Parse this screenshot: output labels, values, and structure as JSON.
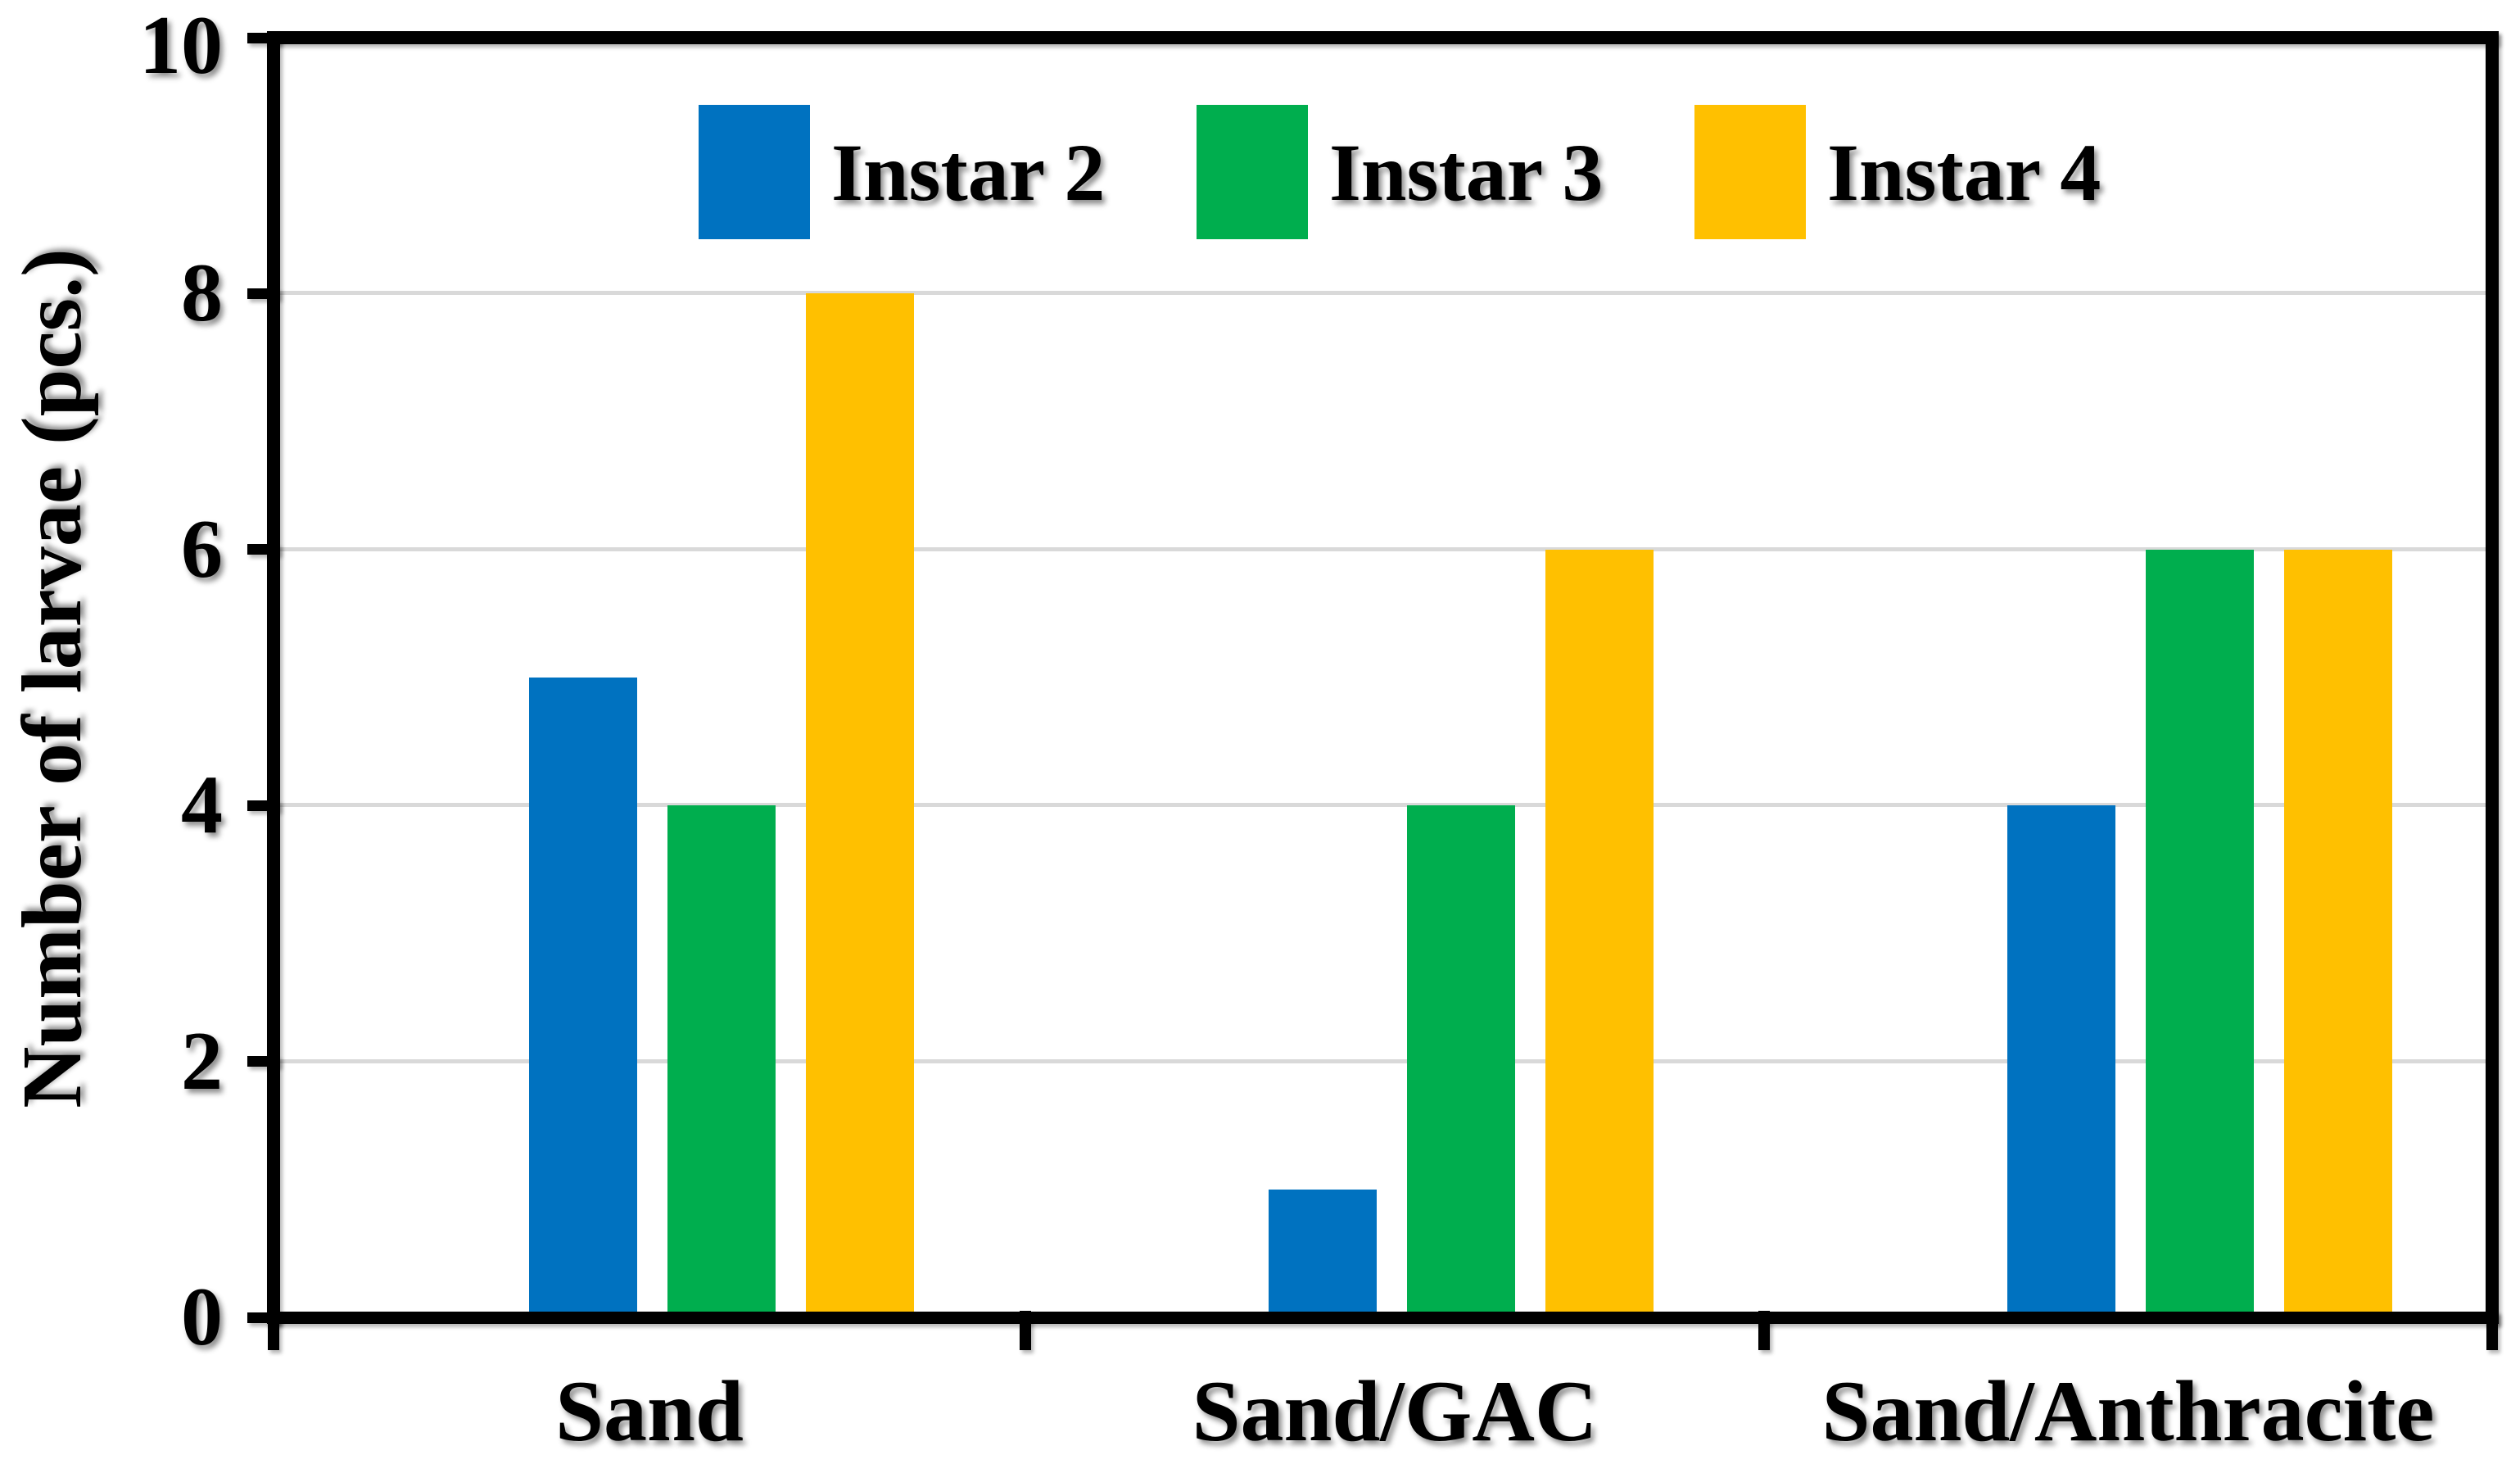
{
  "chart_data": {
    "type": "bar",
    "title": "",
    "ylabel": "Number of larvae (pcs.)",
    "xlabel": "",
    "categories": [
      "Sand",
      "Sand/GAC",
      "Sand/Anthracite"
    ],
    "series": [
      {
        "name": "Instar 2",
        "color": "#0072C0",
        "values": [
          5,
          1,
          4
        ]
      },
      {
        "name": "Instar 3",
        "color": "#00AE4E",
        "values": [
          4,
          4,
          6
        ]
      },
      {
        "name": "Instar 4",
        "color": "#FFC000",
        "values": [
          8,
          6,
          6
        ]
      }
    ],
    "ylim": [
      0,
      10
    ],
    "yticks": [
      0,
      2,
      4,
      6,
      8,
      10
    ],
    "gridline_values": [
      2,
      4,
      6,
      8
    ],
    "grid_on": true,
    "grid_color": "#d9d9d9",
    "axis_color": "#000000",
    "text_color": "#000000",
    "background_color": "#ffffff",
    "legend_position": "top-inside"
  }
}
